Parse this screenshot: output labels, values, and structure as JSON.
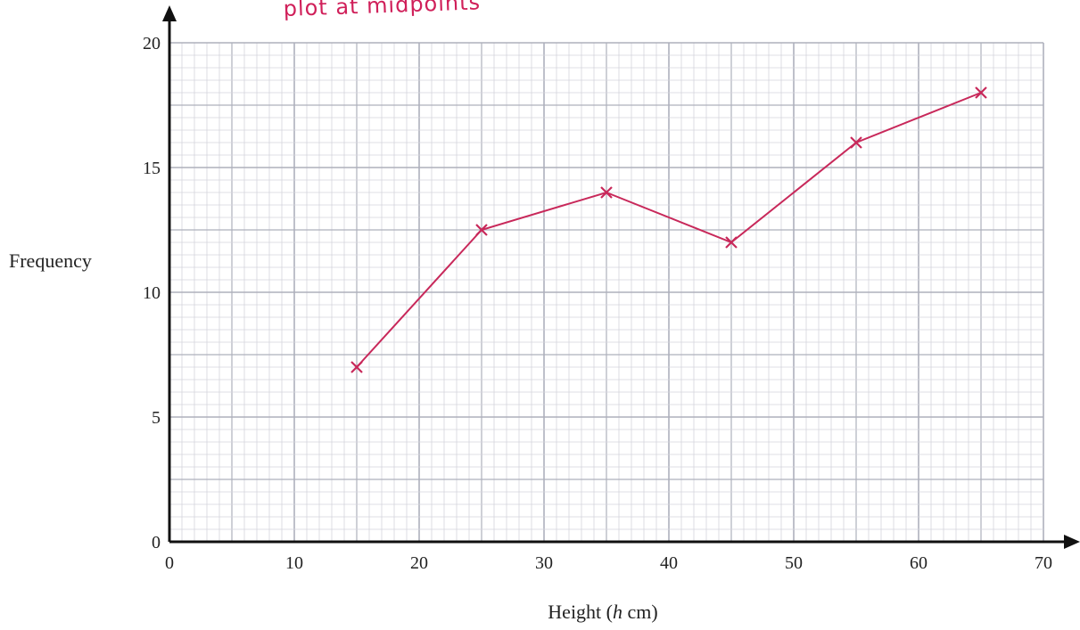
{
  "annotation": "plot at midpoints",
  "chart_data": {
    "type": "line",
    "title": "",
    "xlabel_pre": "Height (",
    "xlabel_var": "h",
    "xlabel_post": " cm)",
    "ylabel": "Frequency",
    "xlim": [
      0,
      70
    ],
    "ylim": [
      0,
      20
    ],
    "xticks": [
      0,
      10,
      20,
      30,
      40,
      50,
      60,
      70
    ],
    "yticks": [
      0,
      5,
      10,
      15,
      20
    ],
    "grid": true,
    "series": [
      {
        "x": [
          15,
          25,
          35,
          45,
          55,
          65
        ],
        "y": [
          7,
          12.5,
          14,
          12,
          16,
          18
        ]
      }
    ],
    "colors": {
      "line": "#c8285a",
      "grid_minor": "#d4d4dc",
      "grid_major": "#aeb0bc",
      "axis": "#111111"
    }
  }
}
